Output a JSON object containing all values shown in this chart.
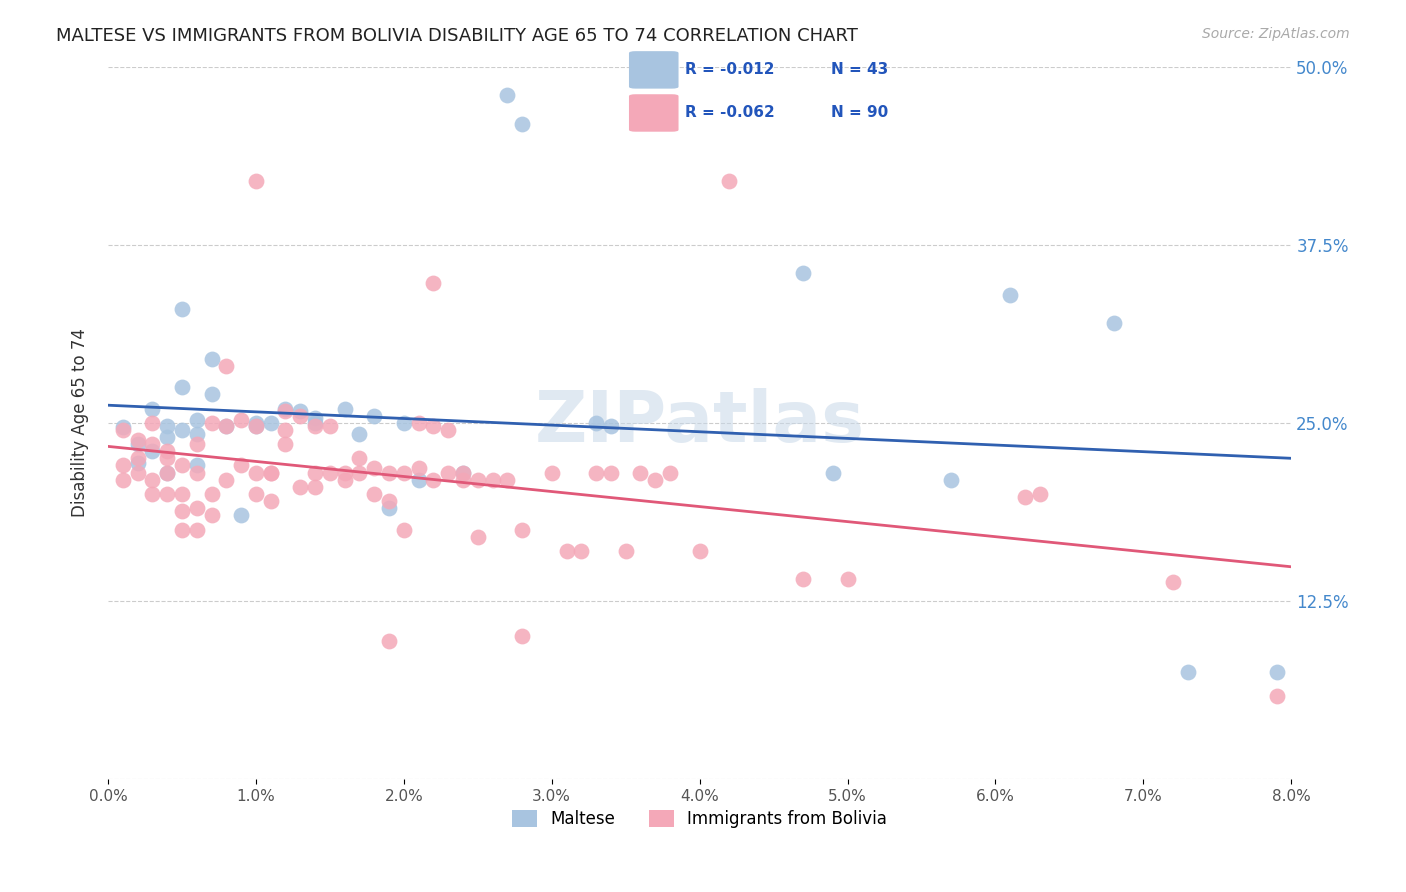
{
  "title": "MALTESE VS IMMIGRANTS FROM BOLIVIA DISABILITY AGE 65 TO 74 CORRELATION CHART",
  "source": "Source: ZipAtlas.com",
  "ylabel": "Disability Age 65 to 74",
  "xmin": 0.0,
  "xmax": 0.08,
  "ymin": 0.0,
  "ymax": 0.5,
  "yticks": [
    0.0,
    0.125,
    0.25,
    0.375,
    0.5
  ],
  "ytick_labels": [
    "",
    "12.5%",
    "25.0%",
    "37.5%",
    "50.0%"
  ],
  "legend_r_blue": "-0.012",
  "legend_n_blue": "43",
  "legend_r_pink": "-0.062",
  "legend_n_pink": "90",
  "blue_color": "#a8c4e0",
  "pink_color": "#f4a8b8",
  "line_blue": "#3060b0",
  "line_pink": "#e05878",
  "watermark": "ZIPatlas",
  "blue_points": [
    [
      0.001,
      0.247
    ],
    [
      0.002,
      0.235
    ],
    [
      0.002,
      0.222
    ],
    [
      0.003,
      0.26
    ],
    [
      0.003,
      0.23
    ],
    [
      0.004,
      0.248
    ],
    [
      0.004,
      0.24
    ],
    [
      0.004,
      0.215
    ],
    [
      0.005,
      0.33
    ],
    [
      0.005,
      0.245
    ],
    [
      0.005,
      0.275
    ],
    [
      0.006,
      0.242
    ],
    [
      0.006,
      0.252
    ],
    [
      0.006,
      0.22
    ],
    [
      0.007,
      0.27
    ],
    [
      0.007,
      0.295
    ],
    [
      0.008,
      0.248
    ],
    [
      0.009,
      0.185
    ],
    [
      0.01,
      0.248
    ],
    [
      0.01,
      0.25
    ],
    [
      0.011,
      0.25
    ],
    [
      0.012,
      0.26
    ],
    [
      0.013,
      0.258
    ],
    [
      0.014,
      0.253
    ],
    [
      0.014,
      0.25
    ],
    [
      0.016,
      0.26
    ],
    [
      0.017,
      0.242
    ],
    [
      0.018,
      0.255
    ],
    [
      0.019,
      0.19
    ],
    [
      0.02,
      0.25
    ],
    [
      0.021,
      0.21
    ],
    [
      0.024,
      0.215
    ],
    [
      0.027,
      0.48
    ],
    [
      0.028,
      0.46
    ],
    [
      0.033,
      0.25
    ],
    [
      0.034,
      0.248
    ],
    [
      0.047,
      0.355
    ],
    [
      0.049,
      0.215
    ],
    [
      0.057,
      0.21
    ],
    [
      0.061,
      0.34
    ],
    [
      0.068,
      0.32
    ],
    [
      0.073,
      0.075
    ],
    [
      0.079,
      0.075
    ]
  ],
  "pink_points": [
    [
      0.001,
      0.245
    ],
    [
      0.001,
      0.21
    ],
    [
      0.001,
      0.22
    ],
    [
      0.002,
      0.238
    ],
    [
      0.002,
      0.225
    ],
    [
      0.002,
      0.215
    ],
    [
      0.003,
      0.235
    ],
    [
      0.003,
      0.25
    ],
    [
      0.003,
      0.21
    ],
    [
      0.003,
      0.2
    ],
    [
      0.004,
      0.2
    ],
    [
      0.004,
      0.23
    ],
    [
      0.004,
      0.215
    ],
    [
      0.004,
      0.225
    ],
    [
      0.005,
      0.188
    ],
    [
      0.005,
      0.175
    ],
    [
      0.005,
      0.2
    ],
    [
      0.005,
      0.22
    ],
    [
      0.006,
      0.235
    ],
    [
      0.006,
      0.215
    ],
    [
      0.006,
      0.19
    ],
    [
      0.006,
      0.175
    ],
    [
      0.007,
      0.185
    ],
    [
      0.007,
      0.25
    ],
    [
      0.007,
      0.2
    ],
    [
      0.008,
      0.248
    ],
    [
      0.008,
      0.21
    ],
    [
      0.008,
      0.29
    ],
    [
      0.009,
      0.252
    ],
    [
      0.009,
      0.22
    ],
    [
      0.01,
      0.248
    ],
    [
      0.01,
      0.2
    ],
    [
      0.01,
      0.215
    ],
    [
      0.011,
      0.215
    ],
    [
      0.011,
      0.195
    ],
    [
      0.011,
      0.215
    ],
    [
      0.012,
      0.258
    ],
    [
      0.012,
      0.245
    ],
    [
      0.012,
      0.235
    ],
    [
      0.013,
      0.255
    ],
    [
      0.013,
      0.205
    ],
    [
      0.014,
      0.248
    ],
    [
      0.014,
      0.215
    ],
    [
      0.014,
      0.205
    ],
    [
      0.015,
      0.248
    ],
    [
      0.015,
      0.215
    ],
    [
      0.016,
      0.215
    ],
    [
      0.016,
      0.21
    ],
    [
      0.017,
      0.215
    ],
    [
      0.017,
      0.225
    ],
    [
      0.018,
      0.218
    ],
    [
      0.018,
      0.2
    ],
    [
      0.019,
      0.215
    ],
    [
      0.019,
      0.195
    ],
    [
      0.02,
      0.215
    ],
    [
      0.02,
      0.175
    ],
    [
      0.021,
      0.25
    ],
    [
      0.021,
      0.218
    ],
    [
      0.022,
      0.248
    ],
    [
      0.022,
      0.21
    ],
    [
      0.023,
      0.245
    ],
    [
      0.023,
      0.215
    ],
    [
      0.024,
      0.215
    ],
    [
      0.024,
      0.21
    ],
    [
      0.025,
      0.21
    ],
    [
      0.025,
      0.17
    ],
    [
      0.026,
      0.21
    ],
    [
      0.027,
      0.21
    ],
    [
      0.028,
      0.175
    ],
    [
      0.028,
      0.1
    ],
    [
      0.03,
      0.215
    ],
    [
      0.031,
      0.16
    ],
    [
      0.032,
      0.16
    ],
    [
      0.033,
      0.215
    ],
    [
      0.034,
      0.215
    ],
    [
      0.035,
      0.16
    ],
    [
      0.036,
      0.215
    ],
    [
      0.037,
      0.21
    ],
    [
      0.038,
      0.215
    ],
    [
      0.04,
      0.16
    ],
    [
      0.042,
      0.42
    ],
    [
      0.022,
      0.348
    ],
    [
      0.01,
      0.42
    ],
    [
      0.019,
      0.097
    ],
    [
      0.047,
      0.14
    ],
    [
      0.05,
      0.14
    ],
    [
      0.062,
      0.198
    ],
    [
      0.063,
      0.2
    ],
    [
      0.072,
      0.138
    ],
    [
      0.079,
      0.058
    ]
  ]
}
